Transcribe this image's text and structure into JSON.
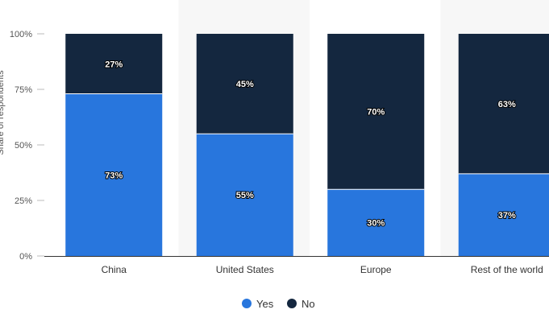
{
  "chart_data": {
    "type": "bar",
    "stacked": true,
    "categories": [
      "China",
      "United States",
      "Europe",
      "Rest of the world"
    ],
    "series": [
      {
        "name": "Yes",
        "values": [
          73,
          55,
          30,
          37
        ],
        "color": "#2876dd"
      },
      {
        "name": "No",
        "values": [
          27,
          45,
          70,
          63
        ],
        "color": "#14273f"
      }
    ],
    "data_labels": {
      "Yes": [
        "73%",
        "55%",
        "30%",
        "37%"
      ],
      "No": [
        "27%",
        "45%",
        "70%",
        "63%"
      ]
    },
    "ylabel": "Share of respondents",
    "ylim": [
      0,
      100
    ],
    "yticks": [
      0,
      25,
      50,
      75,
      100
    ],
    "ytick_labels": [
      "0%",
      "25%",
      "50%",
      "75%",
      "100%"
    ],
    "grid": false,
    "legend_position": "bottom-center",
    "alternating_band_color": "#f7f7f7"
  }
}
